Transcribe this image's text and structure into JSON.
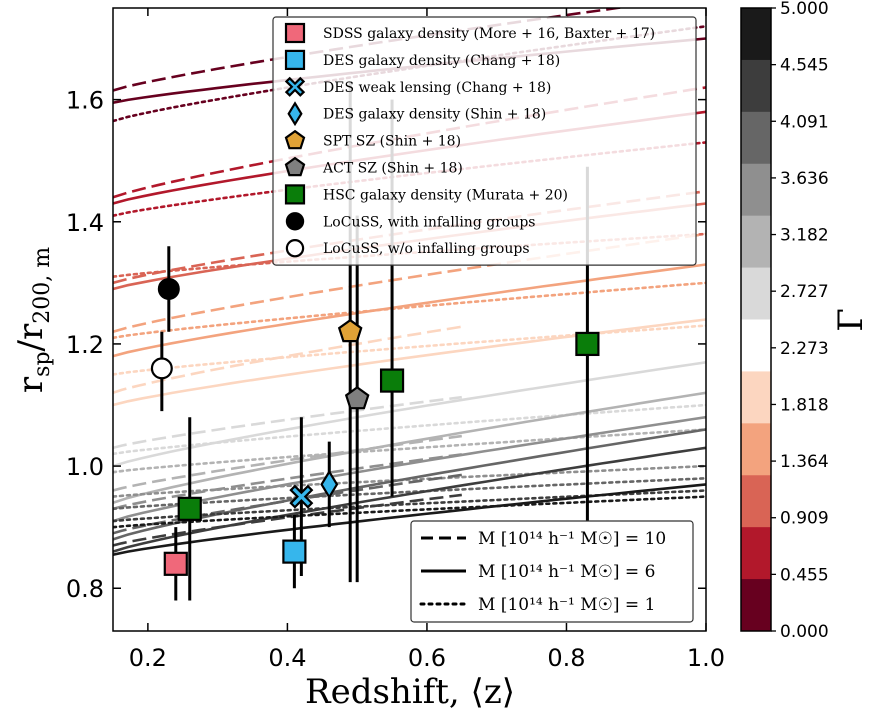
{
  "chart_data": {
    "type": "scatter",
    "xlabel": "Redshift, ⟨z⟩",
    "ylabel": "r_sp/r_200, m",
    "xlim": [
      0.15,
      1.0
    ],
    "ylim": [
      0.73,
      1.75
    ],
    "xticks": [
      0.2,
      0.4,
      0.6,
      0.8,
      1.0
    ],
    "xtick_labels": [
      "0.2",
      "0.4",
      "0.6",
      "0.8",
      "1.0"
    ],
    "yticks": [
      0.8,
      1.0,
      1.2,
      1.4,
      1.6
    ],
    "ytick_labels": [
      "0.8",
      "1.0",
      "1.2",
      "1.4",
      "1.6"
    ],
    "legend_position": "top-right",
    "measurements": [
      {
        "name": "SDSS galaxy density (More + 16, Baxter + 17)",
        "marker": "square",
        "color": "#f0687a",
        "points": [
          {
            "x": 0.24,
            "y": 0.84,
            "ylo": 0.78,
            "yhi": 0.9
          }
        ]
      },
      {
        "name": "DES galaxy density (Chang + 18)",
        "marker": "square",
        "color": "#36b6ec",
        "points": [
          {
            "x": 0.41,
            "y": 0.86,
            "ylo": 0.8,
            "yhi": 0.92
          }
        ]
      },
      {
        "name": "DES weak lensing (Chang + 18)",
        "marker": "x",
        "color": "#36b6ec",
        "points": [
          {
            "x": 0.42,
            "y": 0.95,
            "ylo": 0.82,
            "yhi": 1.08
          }
        ]
      },
      {
        "name": "DES galaxy density (Shin + 18)",
        "marker": "diamond",
        "color": "#36b6ec",
        "points": [
          {
            "x": 0.46,
            "y": 0.97,
            "ylo": 0.9,
            "yhi": 1.04
          }
        ]
      },
      {
        "name": "SPT SZ (Shin + 18)",
        "marker": "pentagon",
        "color": "#e0a236",
        "points": [
          {
            "x": 0.49,
            "y": 1.22,
            "ylo": 0.81,
            "yhi": 1.63
          }
        ]
      },
      {
        "name": "ACT SZ (Shin + 18)",
        "marker": "pentagon",
        "color": "#7f7f7f",
        "points": [
          {
            "x": 0.5,
            "y": 1.11,
            "ylo": 0.81,
            "yhi": 1.41
          }
        ]
      },
      {
        "name": "HSC galaxy density (Murata + 20)",
        "marker": "square",
        "color": "#0a7d0a",
        "points": [
          {
            "x": 0.26,
            "y": 0.93,
            "ylo": 0.78,
            "yhi": 1.08
          },
          {
            "x": 0.55,
            "y": 1.14,
            "ylo": 0.95,
            "yhi": 1.6
          },
          {
            "x": 0.83,
            "y": 1.2,
            "ylo": 0.91,
            "yhi": 1.49
          }
        ]
      },
      {
        "name": "LoCuSS, with infalling groups",
        "marker": "circle",
        "color": "#000000",
        "points": [
          {
            "x": 0.23,
            "y": 1.29,
            "ylo": 1.22,
            "yhi": 1.36
          }
        ]
      },
      {
        "name": "LoCuSS, w/o infalling groups",
        "marker": "circle-open",
        "color": "#ffffff",
        "points": [
          {
            "x": 0.22,
            "y": 1.16,
            "ylo": 1.09,
            "yhi": 1.22
          }
        ]
      }
    ],
    "model_legend": [
      {
        "name": "M [10¹⁴ h⁻¹ M☉] = 10",
        "style": "dashed"
      },
      {
        "name": "M [10¹⁴ h⁻¹ M☉] = 6",
        "style": "solid"
      },
      {
        "name": "M [10¹⁴ h⁻¹ M☉] = 1",
        "style": "dotted"
      }
    ],
    "colorbar": {
      "label": "Γ",
      "ticks": [
        "5.000",
        "4.545",
        "4.091",
        "3.636",
        "3.182",
        "2.727",
        "2.273",
        "1.818",
        "1.364",
        "0.909",
        "0.455",
        "0.000"
      ],
      "bands": [
        "#1a1a1a",
        "#3d3d3d",
        "#666666",
        "#8f8f8f",
        "#b3b3b3",
        "#d9d9d9",
        "#ffffff",
        "#fcd6c0",
        "#f3a37e",
        "#d96455",
        "#b2182b",
        "#67001f"
      ]
    },
    "model_curves": [
      {
        "style": "dashed",
        "color": "#67001f",
        "y0": 1.615,
        "y1": 1.77,
        "xend": 1.0
      },
      {
        "style": "solid",
        "color": "#67001f",
        "y0": 1.595,
        "y1": 1.7,
        "xend": 1.0
      },
      {
        "style": "dotted",
        "color": "#67001f",
        "y0": 1.565,
        "y1": 1.72,
        "xend": 1.0
      },
      {
        "style": "dashed",
        "color": "#b2182b",
        "y0": 1.44,
        "y1": 1.62,
        "xend": 1.0
      },
      {
        "style": "solid",
        "color": "#b2182b",
        "y0": 1.43,
        "y1": 1.58,
        "xend": 1.0
      },
      {
        "style": "dotted",
        "color": "#b2182b",
        "y0": 1.41,
        "y1": 1.53,
        "xend": 1.0
      },
      {
        "style": "dashed",
        "color": "#d96455",
        "y0": 1.3,
        "y1": 1.45,
        "xend": 1.0
      },
      {
        "style": "solid",
        "color": "#d96455",
        "y0": 1.29,
        "y1": 1.43,
        "xend": 1.0
      },
      {
        "style": "dotted",
        "color": "#d96455",
        "y0": 1.31,
        "y1": 1.38,
        "xend": 1.0
      },
      {
        "style": "dashed",
        "color": "#f3a37e",
        "y0": 1.22,
        "y1": 1.38,
        "xend": 1.0
      },
      {
        "style": "solid",
        "color": "#f3a37e",
        "y0": 1.18,
        "y1": 1.33,
        "xend": 1.0
      },
      {
        "style": "dotted",
        "color": "#f3a37e",
        "y0": 1.21,
        "y1": 1.3,
        "xend": 1.0
      },
      {
        "style": "dashed",
        "color": "#fcd6c0",
        "y0": 1.12,
        "y1": 1.29,
        "xend": 0.65
      },
      {
        "style": "solid",
        "color": "#fcd6c0",
        "y0": 1.1,
        "y1": 1.24,
        "xend": 1.0
      },
      {
        "style": "dotted",
        "color": "#fcd6c0",
        "y0": 1.15,
        "y1": 1.23,
        "xend": 1.0
      },
      {
        "style": "dashed",
        "color": "#d9d9d9",
        "y0": 1.03,
        "y1": 1.16,
        "xend": 0.65
      },
      {
        "style": "solid",
        "color": "#d9d9d9",
        "y0": 1.0,
        "y1": 1.17,
        "xend": 1.0
      },
      {
        "style": "dotted",
        "color": "#d9d9d9",
        "y0": 1.02,
        "y1": 1.1,
        "xend": 1.0
      },
      {
        "style": "dashed",
        "color": "#b3b3b3",
        "y0": 0.96,
        "y1": 1.1,
        "xend": 0.65
      },
      {
        "style": "solid",
        "color": "#b3b3b3",
        "y0": 0.94,
        "y1": 1.12,
        "xend": 1.0
      },
      {
        "style": "dotted",
        "color": "#b3b3b3",
        "y0": 0.99,
        "y1": 1.06,
        "xend": 1.0
      },
      {
        "style": "dashed",
        "color": "#8f8f8f",
        "y0": 0.93,
        "y1": 1.07,
        "xend": 0.65
      },
      {
        "style": "solid",
        "color": "#8f8f8f",
        "y0": 0.91,
        "y1": 1.08,
        "xend": 1.0
      },
      {
        "style": "dotted",
        "color": "#8f8f8f",
        "y0": 0.95,
        "y1": 1.0,
        "xend": 1.0
      },
      {
        "style": "dashed",
        "color": "#666666",
        "y0": 0.89,
        "y1": 1.04,
        "xend": 0.65
      },
      {
        "style": "solid",
        "color": "#666666",
        "y0": 0.88,
        "y1": 1.06,
        "xend": 1.0
      },
      {
        "style": "dotted",
        "color": "#666666",
        "y0": 0.93,
        "y1": 0.98,
        "xend": 1.0
      },
      {
        "style": "dashed",
        "color": "#3d3d3d",
        "y0": 0.87,
        "y1": 1.0,
        "xend": 0.65
      },
      {
        "style": "solid",
        "color": "#3d3d3d",
        "y0": 0.86,
        "y1": 1.03,
        "xend": 1.0
      },
      {
        "style": "dotted",
        "color": "#3d3d3d",
        "y0": 0.91,
        "y1": 0.96,
        "xend": 1.0
      },
      {
        "style": "solid",
        "color": "#1a1a1a",
        "y0": 0.855,
        "y1": 0.97,
        "xend": 1.0
      },
      {
        "style": "dotted",
        "color": "#1a1a1a",
        "y0": 0.9,
        "y1": 0.95,
        "xend": 1.0
      }
    ]
  }
}
